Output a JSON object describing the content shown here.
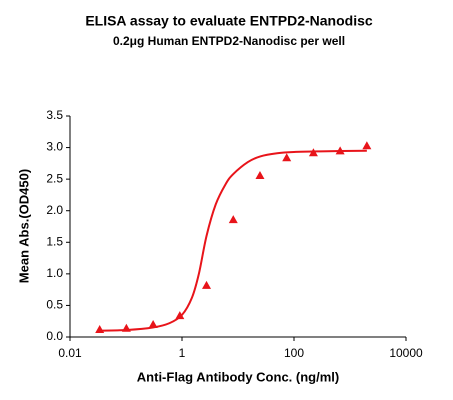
{
  "chart_data": {
    "type": "scatter",
    "title": "ELISA assay to evaluate ENTPD2-Nanodisc",
    "subtitle": "0.2μg Human ENTPD2-Nanodisc per well",
    "x_label": "Anti-Flag Antibody Conc. (ng/ml)",
    "y_label": "Mean Abs.(OD450)",
    "x_scale": "log",
    "xlim": [
      0.01,
      10000
    ],
    "xticks": [
      0.01,
      1,
      100,
      10000
    ],
    "ylim": [
      0,
      3.5
    ],
    "yticks": [
      {
        "value": 0,
        "label": "0.0"
      },
      0.5,
      {
        "value": 1,
        "label": "1.0"
      },
      1.5,
      {
        "value": 2,
        "label": "2.0"
      },
      2.5,
      {
        "value": 3,
        "label": "3.0"
      },
      3.5
    ],
    "grid": false,
    "series": [
      {
        "color": "#e8141a",
        "marker": "triangle",
        "x": [
          0.0339,
          0.1016,
          0.305,
          0.914,
          2.74,
          8.23,
          24.69,
          74.07,
          222.2,
          666.7,
          2000
        ],
        "values": [
          0.11,
          0.13,
          0.19,
          0.33,
          0.81,
          1.85,
          2.55,
          2.83,
          2.91,
          2.94,
          3.02
        ]
      },
      {
        "color": "#e8141a",
        "marker": "line",
        "x": [
          0.0339,
          0.1,
          0.3,
          0.6,
          1,
          1.5,
          2,
          2.74,
          4,
          6,
          8.23,
          15,
          25,
          50,
          100,
          300,
          2000
        ],
        "values": [
          0.1,
          0.11,
          0.15,
          0.22,
          0.35,
          0.62,
          1.0,
          1.6,
          2.1,
          2.42,
          2.58,
          2.77,
          2.86,
          2.91,
          2.93,
          2.94,
          2.95
        ]
      }
    ]
  }
}
